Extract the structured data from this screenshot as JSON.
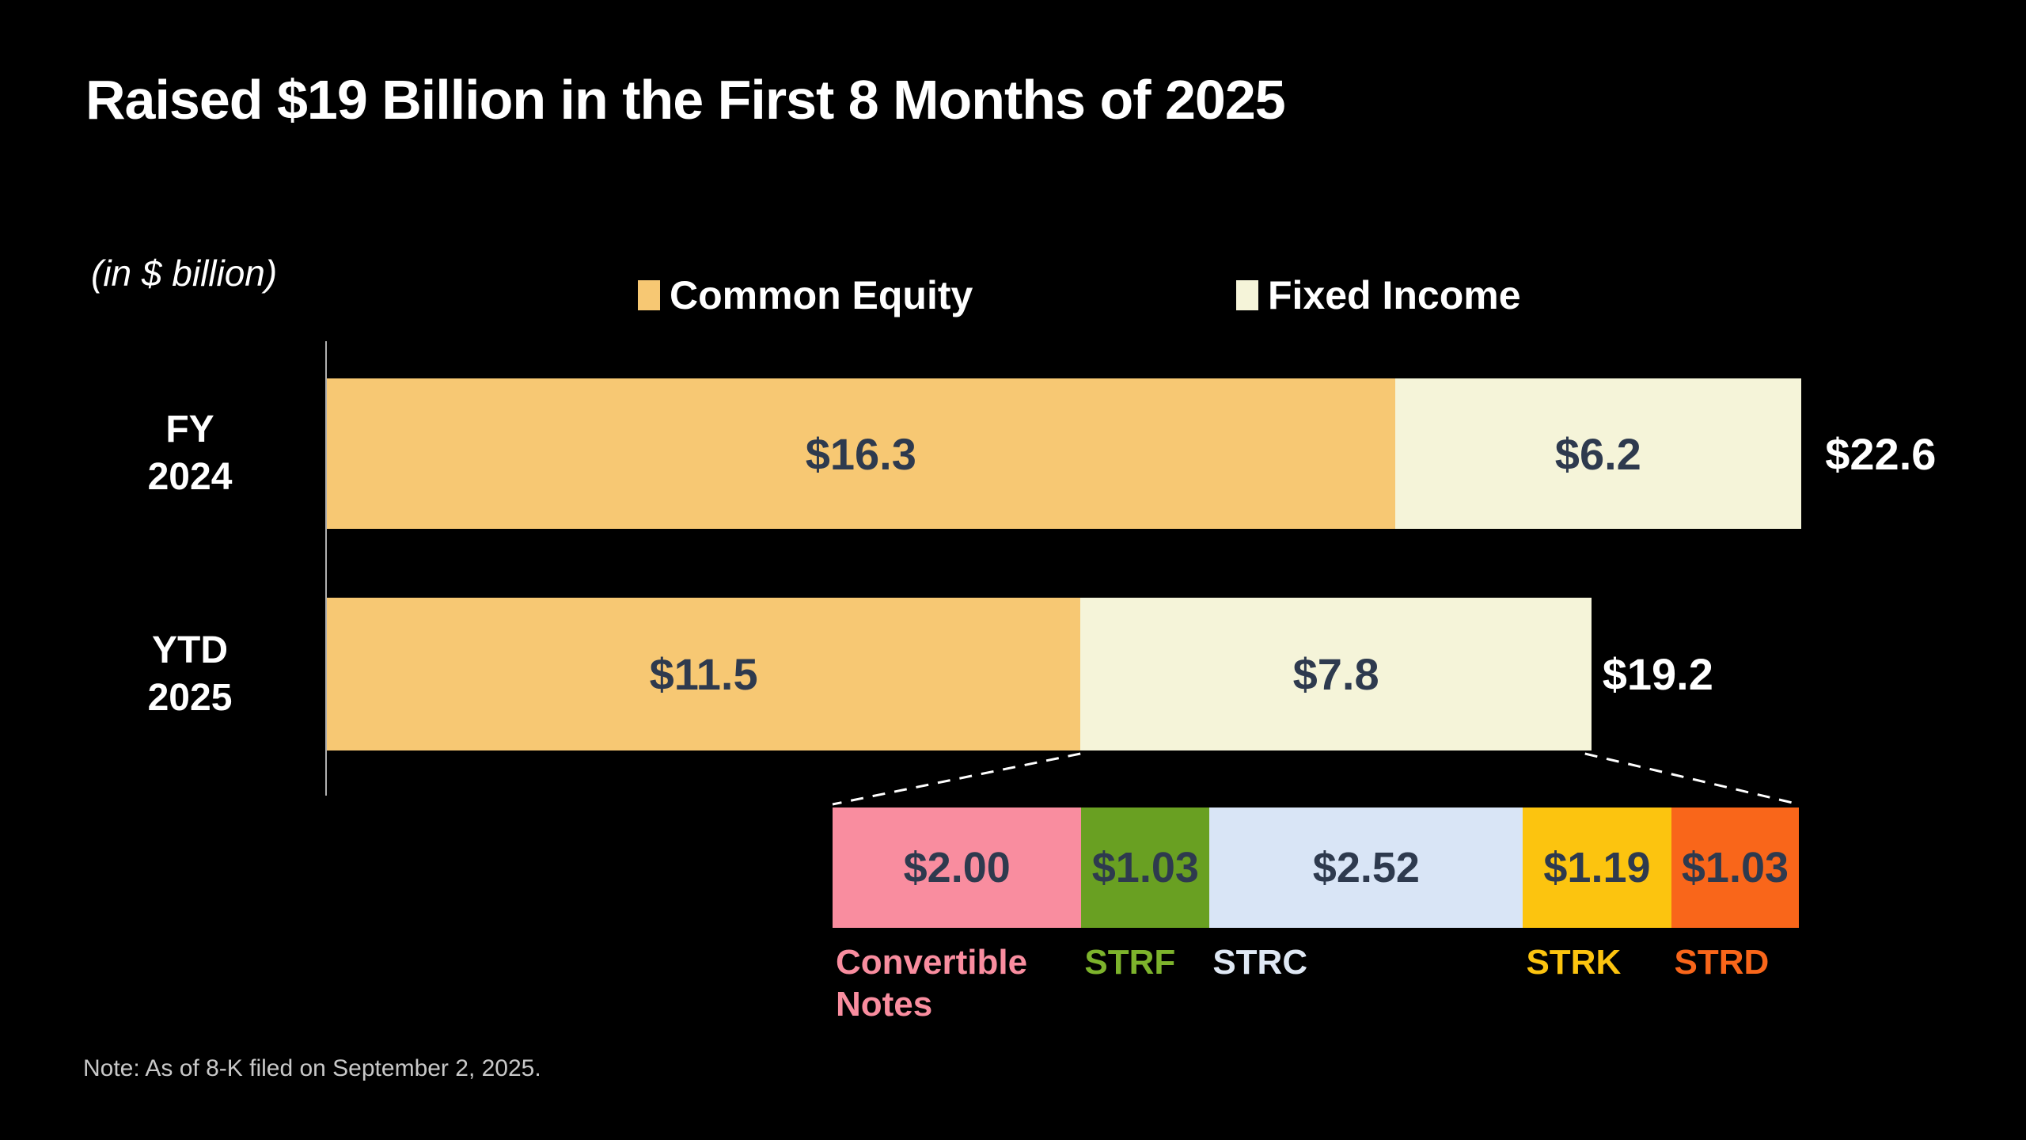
{
  "slide": {
    "title": "Raised $19 Billion in the First 8 Months of 2025",
    "units_label": "(in $ billion)",
    "note": "Note: As of 8-K filed on September 2, 2025."
  },
  "legend": {
    "items": [
      {
        "label": "Common Equity",
        "color": "#f7c873"
      },
      {
        "label": "Fixed Income",
        "color": "#f5f4d9"
      }
    ]
  },
  "chart_data": {
    "type": "bar",
    "orientation": "horizontal",
    "stacked": true,
    "units": "$ billion",
    "grid": false,
    "legend_position": "top",
    "categories": [
      "FY\n2024",
      "YTD\n2025"
    ],
    "series": [
      {
        "name": "Common Equity",
        "color": "#f7c873",
        "values": [
          16.3,
          11.5
        ],
        "labels": [
          "$16.3",
          "$11.5"
        ]
      },
      {
        "name": "Fixed Income",
        "color": "#f5f4d9",
        "values": [
          6.2,
          7.8
        ],
        "labels": [
          "$6.2",
          "$7.8"
        ]
      }
    ],
    "totals": [
      22.6,
      19.2
    ],
    "total_labels": [
      "$22.6",
      "$19.2"
    ],
    "value_label_color": "#2e3a4e",
    "breakdown": {
      "of": "Fixed Income YTD 2025",
      "segments": [
        {
          "label": "Convertible\nNotes",
          "value": 2.0,
          "display": "$2.00",
          "color": "#f98d9f",
          "label_color": "#f98d9f"
        },
        {
          "label": "STRF",
          "value": 1.03,
          "display": "$1.03",
          "color": "#69a022",
          "label_color": "#7db32c"
        },
        {
          "label": "STRC",
          "value": 2.52,
          "display": "$2.52",
          "color": "#d9e5f6",
          "label_color": "#dfe8f4"
        },
        {
          "label": "STRK",
          "value": 1.19,
          "display": "$1.19",
          "color": "#fcc40f",
          "label_color": "#fcc40f"
        },
        {
          "label": "STRD",
          "value": 1.03,
          "display": "$1.03",
          "color": "#f9661a",
          "label_color": "#f9661a"
        }
      ]
    }
  }
}
